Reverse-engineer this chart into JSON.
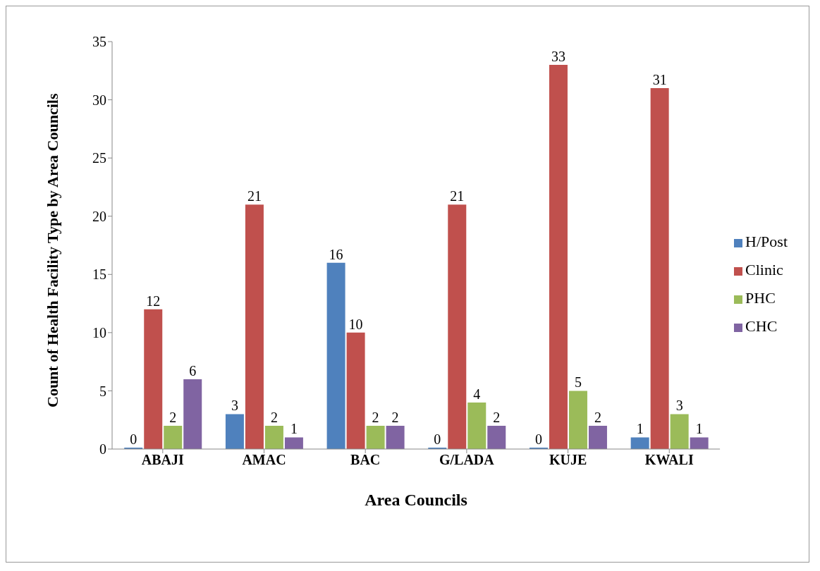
{
  "chart_data": {
    "type": "bar",
    "xlabel": "Area Councils",
    "ylabel": "Count of Health Facility Type by Area Councils",
    "categories": [
      "ABAJI",
      "AMAC",
      "BAC",
      "G/LADA",
      "KUJE",
      "KWALI"
    ],
    "series": [
      {
        "name": "H/Post",
        "color": "#4f81bd",
        "values": [
          0,
          3,
          16,
          0,
          0,
          1
        ]
      },
      {
        "name": "Clinic",
        "color": "#c0504d",
        "values": [
          12,
          21,
          10,
          21,
          33,
          31
        ]
      },
      {
        "name": "PHC",
        "color": "#9bbb59",
        "values": [
          2,
          2,
          2,
          4,
          5,
          3
        ]
      },
      {
        "name": "CHC",
        "color": "#8064a2",
        "values": [
          6,
          1,
          2,
          2,
          2,
          1
        ]
      }
    ],
    "ylim": [
      0,
      35
    ],
    "yticks": [
      0,
      5,
      10,
      15,
      20,
      25,
      30,
      35
    ],
    "grid": false,
    "legend": "right",
    "data_labels": true
  }
}
